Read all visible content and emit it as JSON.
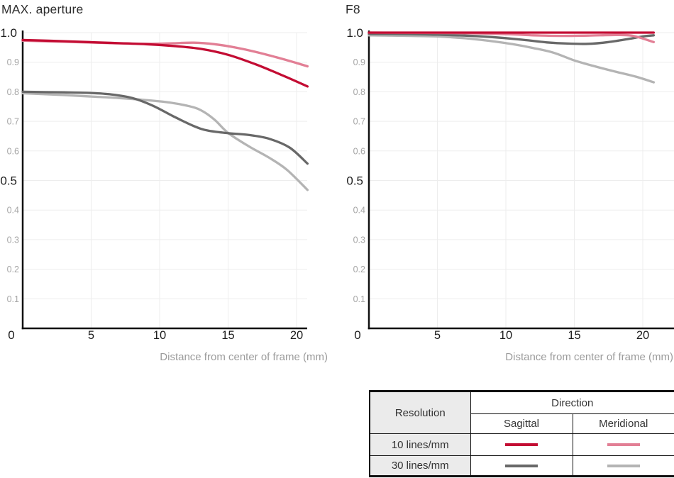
{
  "chart_data": [
    {
      "type": "line",
      "title": "MAX. aperture",
      "xlabel": "Distance from center of frame (mm)",
      "xlim": [
        0,
        20.8
      ],
      "ylim": [
        0,
        1.0
      ],
      "x_ticks": [
        0,
        5,
        10,
        15,
        20
      ],
      "y_ticks_major": [
        1.0,
        0.5,
        0
      ],
      "y_ticks_minor": [
        0.9,
        0.8,
        0.7,
        0.6,
        0.4,
        0.3,
        0.2,
        0.1
      ],
      "grid": true,
      "legend_position": "separate-table",
      "series": [
        {
          "name": "30 lines/mm Meridional",
          "color": "#b4b4b4",
          "points": [
            [
              0,
              0.795
            ],
            [
              3,
              0.789
            ],
            [
              5,
              0.784
            ],
            [
              7,
              0.779
            ],
            [
              9,
              0.772
            ],
            [
              10.5,
              0.765
            ],
            [
              12,
              0.753
            ],
            [
              13,
              0.738
            ],
            [
              14,
              0.706
            ],
            [
              15,
              0.661
            ],
            [
              16.5,
              0.616
            ],
            [
              18,
              0.577
            ],
            [
              19.3,
              0.536
            ],
            [
              20.8,
              0.468
            ]
          ]
        },
        {
          "name": "30 lines/mm Sagittal",
          "color": "#686868",
          "points": [
            [
              0,
              0.8
            ],
            [
              3,
              0.798
            ],
            [
              5,
              0.796
            ],
            [
              6.5,
              0.791
            ],
            [
              8,
              0.779
            ],
            [
              9.5,
              0.753
            ],
            [
              11,
              0.717
            ],
            [
              12.5,
              0.684
            ],
            [
              13.5,
              0.669
            ],
            [
              15,
              0.66
            ],
            [
              16.5,
              0.654
            ],
            [
              18,
              0.641
            ],
            [
              19.5,
              0.611
            ],
            [
              20.8,
              0.557
            ]
          ]
        },
        {
          "name": "10 lines/mm Meridional",
          "color": "#e27f95",
          "points": [
            [
              0,
              0.973
            ],
            [
              3,
              0.969
            ],
            [
              6,
              0.965
            ],
            [
              9,
              0.962
            ],
            [
              11,
              0.964
            ],
            [
              12.5,
              0.966
            ],
            [
              14,
              0.961
            ],
            [
              15.5,
              0.95
            ],
            [
              17,
              0.935
            ],
            [
              18.5,
              0.917
            ],
            [
              19.8,
              0.9
            ],
            [
              20.8,
              0.886
            ]
          ]
        },
        {
          "name": "10 lines/mm Sagittal",
          "color": "#c30c33",
          "points": [
            [
              0,
              0.975
            ],
            [
              3,
              0.971
            ],
            [
              6,
              0.966
            ],
            [
              9,
              0.961
            ],
            [
              11,
              0.955
            ],
            [
              13,
              0.945
            ],
            [
              15,
              0.925
            ],
            [
              17,
              0.893
            ],
            [
              19,
              0.855
            ],
            [
              20.8,
              0.818
            ]
          ]
        }
      ]
    },
    {
      "type": "line",
      "title": "F8",
      "xlabel": "Distance from center of frame (mm)",
      "xlim": [
        0,
        20.8
      ],
      "ylim": [
        0,
        1.0
      ],
      "x_ticks": [
        0,
        5,
        10,
        15,
        20
      ],
      "y_ticks_major": [
        1.0,
        0.5,
        0
      ],
      "y_ticks_minor": [
        0.9,
        0.8,
        0.7,
        0.6,
        0.4,
        0.3,
        0.2,
        0.1
      ],
      "grid": true,
      "legend_position": "separate-table",
      "series": [
        {
          "name": "30 lines/mm Meridional",
          "color": "#b4b4b4",
          "points": [
            [
              0,
              0.991
            ],
            [
              3,
              0.989
            ],
            [
              5,
              0.987
            ],
            [
              7,
              0.981
            ],
            [
              9,
              0.971
            ],
            [
              10.5,
              0.961
            ],
            [
              12,
              0.948
            ],
            [
              13.5,
              0.932
            ],
            [
              15,
              0.906
            ],
            [
              16.5,
              0.886
            ],
            [
              18,
              0.868
            ],
            [
              19.5,
              0.851
            ],
            [
              20.8,
              0.832
            ]
          ]
        },
        {
          "name": "30 lines/mm Sagittal",
          "color": "#686868",
          "points": [
            [
              0,
              0.996
            ],
            [
              3,
              0.995
            ],
            [
              5,
              0.993
            ],
            [
              7,
              0.99
            ],
            [
              9,
              0.985
            ],
            [
              11,
              0.977
            ],
            [
              13,
              0.967
            ],
            [
              14.5,
              0.963
            ],
            [
              16,
              0.962
            ],
            [
              17.5,
              0.968
            ],
            [
              19,
              0.979
            ],
            [
              20,
              0.987
            ],
            [
              20.8,
              0.991
            ]
          ]
        },
        {
          "name": "10 lines/mm Meridional",
          "color": "#e27f95",
          "points": [
            [
              0,
              1.0
            ],
            [
              4,
              0.999
            ],
            [
              7,
              0.998
            ],
            [
              10,
              0.995
            ],
            [
              12,
              0.991
            ],
            [
              14,
              0.989
            ],
            [
              16,
              0.99
            ],
            [
              18,
              0.992
            ],
            [
              19.3,
              0.989
            ],
            [
              20.8,
              0.968
            ]
          ]
        },
        {
          "name": "10 lines/mm Sagittal",
          "color": "#c30c33",
          "points": [
            [
              0,
              1.0
            ],
            [
              5,
              1.0
            ],
            [
              10,
              1.0
            ],
            [
              15,
              1.0
            ],
            [
              20.8,
              1.0
            ]
          ]
        }
      ]
    }
  ],
  "legend": {
    "resolution_header": "Resolution",
    "direction_header": "Direction",
    "sagittal_header": "Sagittal",
    "meridional_header": "Meridional",
    "rows": [
      {
        "label": "10 lines/mm",
        "sagittal_color": "#c30c33",
        "meridional_color": "#e27f95"
      },
      {
        "label": "30 lines/mm",
        "sagittal_color": "#686868",
        "meridional_color": "#b4b4b4"
      }
    ]
  },
  "colors": {
    "accent_red": "#c30c33",
    "pink": "#e27f95",
    "dark_gray": "#686868",
    "light_gray": "#b4b4b4",
    "axis": "#111111",
    "grid": "#ededed",
    "tick_major": "#1c1c1c",
    "tick_minor": "#a5a5a5",
    "axis_label_gray": "#9b9b9b",
    "table_header_bg": "#ebebeb"
  }
}
